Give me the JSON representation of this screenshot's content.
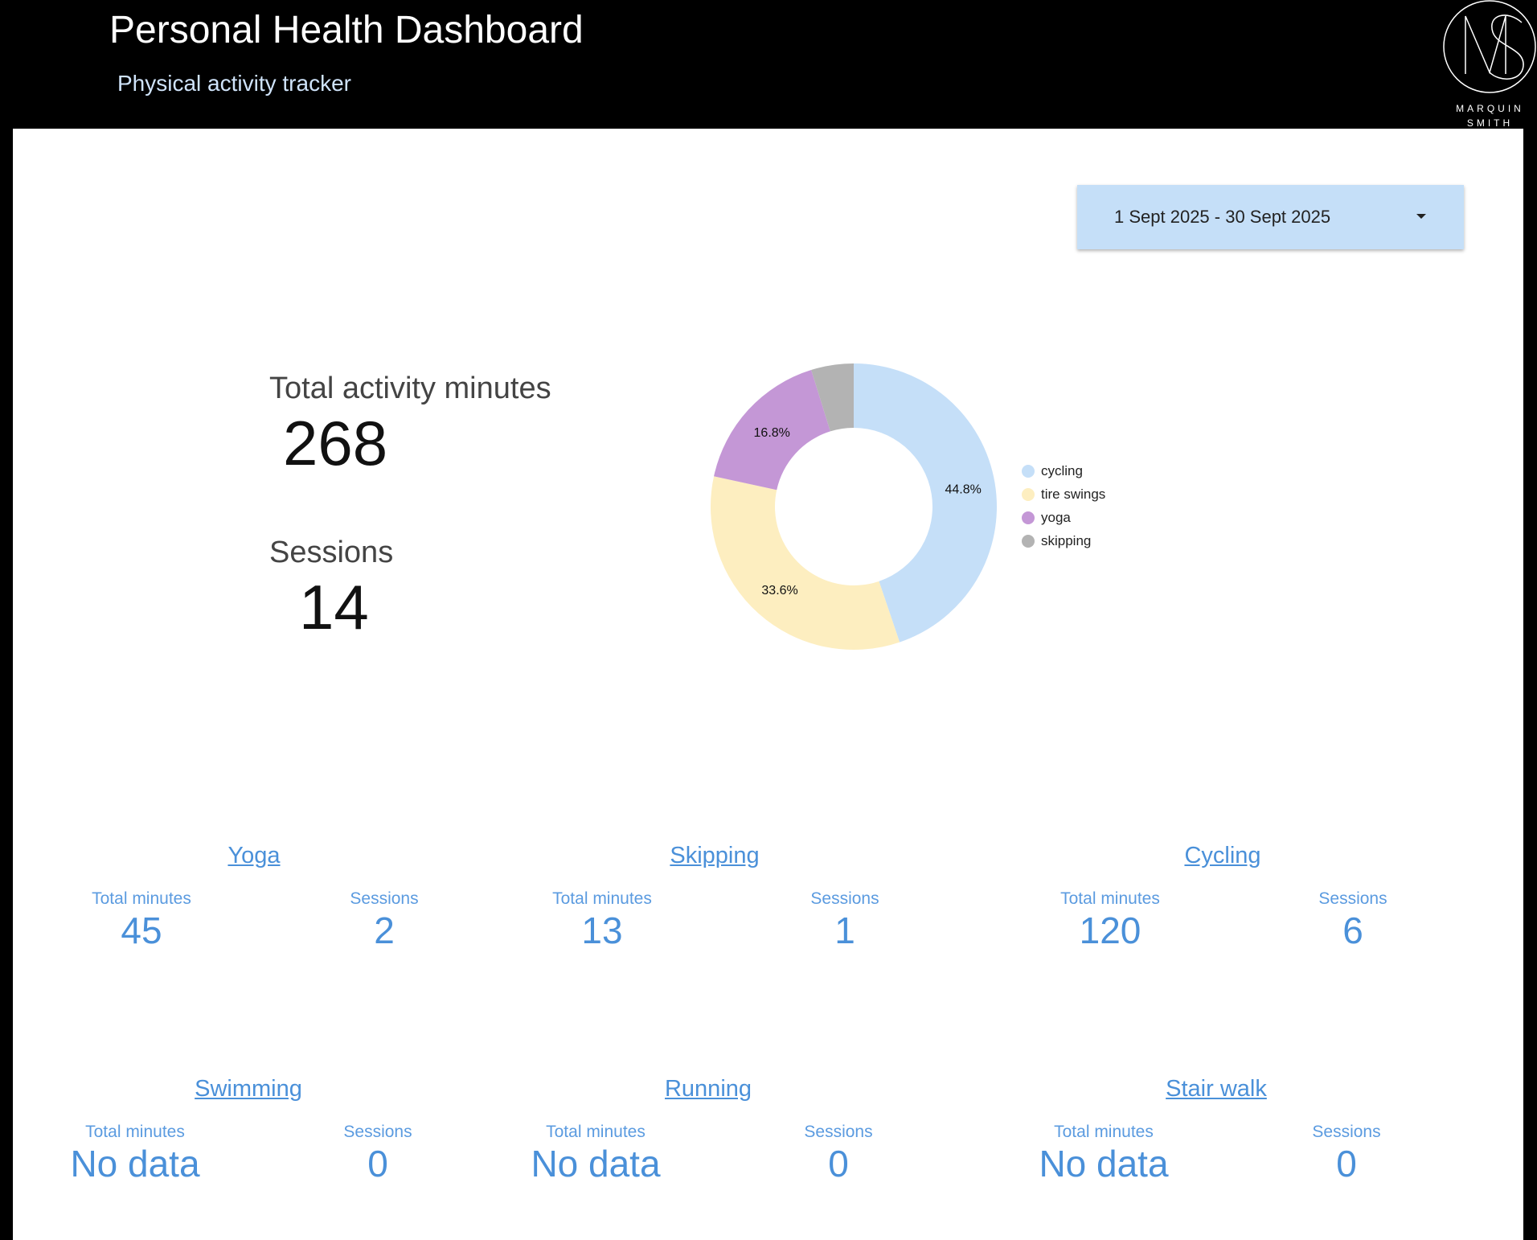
{
  "header": {
    "title": "Personal Health Dashboard",
    "subtitle": "Physical activity tracker",
    "logo_line1": "MARQUIN",
    "logo_line2": "SMITH"
  },
  "date_range": {
    "label": "1 Sept 2025 - 30 Sept 2025"
  },
  "kpis": {
    "minutes_label": "Total activity minutes",
    "minutes_value": "268",
    "sessions_label": "Sessions",
    "sessions_value": "14"
  },
  "chart_data": {
    "type": "pie",
    "style": "donut",
    "legend_position": "right",
    "slices": [
      {
        "label": "cycling",
        "percent": 44.8,
        "percent_label": "44.8%",
        "color": "#c5dff8"
      },
      {
        "label": "tire swings",
        "percent": 33.6,
        "percent_label": "33.6%",
        "color": "#fdeec0"
      },
      {
        "label": "yoga",
        "percent": 16.8,
        "percent_label": "16.8%",
        "color": "#c497d6"
      },
      {
        "label": "skipping",
        "percent": 4.8,
        "percent_label": "",
        "color": "#b3b3b3"
      }
    ]
  },
  "cards": [
    {
      "title": "Yoga",
      "minutes_label": "Total minutes",
      "minutes": "45",
      "sessions_label": "Sessions",
      "sessions": "2"
    },
    {
      "title": "Skipping",
      "minutes_label": "Total minutes",
      "minutes": "13",
      "sessions_label": "Sessions",
      "sessions": "1"
    },
    {
      "title": "Cycling",
      "minutes_label": "Total minutes",
      "minutes": "120",
      "sessions_label": "Sessions",
      "sessions": "6"
    },
    {
      "title": "Swimming",
      "minutes_label": "Total minutes",
      "minutes": "No data",
      "sessions_label": "Sessions",
      "sessions": "0"
    },
    {
      "title": "Running",
      "minutes_label": "Total minutes",
      "minutes": "No data",
      "sessions_label": "Sessions",
      "sessions": "0"
    },
    {
      "title": "Stair walk",
      "minutes_label": "Total minutes",
      "minutes": "No data",
      "sessions_label": "Sessions",
      "sessions": "0"
    }
  ],
  "colors": {
    "header_bg": "#000000",
    "accent": "#4a90d9",
    "date_bg": "#c5dff8"
  }
}
